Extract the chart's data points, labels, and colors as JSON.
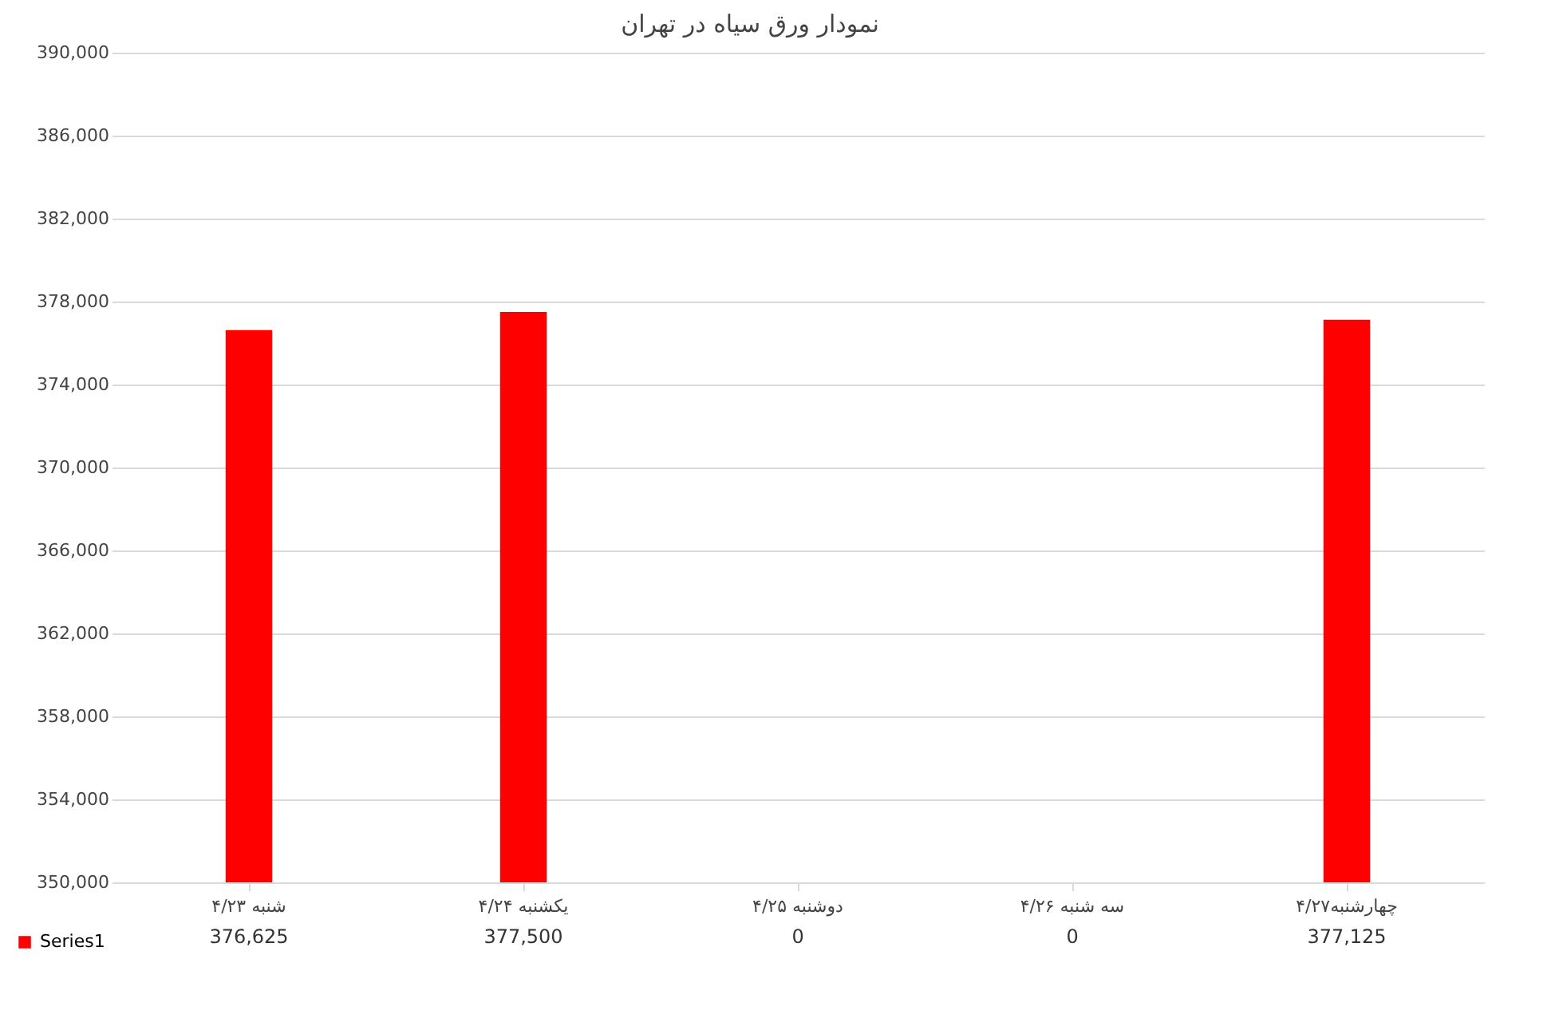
{
  "chart_data": {
    "type": "bar",
    "title": "نمودار ورق سیاه در تهران",
    "categories": [
      "شنبه ۴/۲۳",
      "یکشنبه ۴/۲۴",
      "دوشنبه ۴/۲۵",
      "سه شنبه ۴/۲۶",
      "چهارشنبه۴/۲۷"
    ],
    "series": [
      {
        "name": "Series1",
        "color": "#ff0000",
        "values": [
          376625,
          377500,
          null,
          null,
          377125
        ],
        "value_labels": [
          "376,625",
          "377,500",
          "0",
          "0",
          "377,125"
        ]
      }
    ],
    "ylim": [
      350000,
      390000
    ],
    "yticks": [
      {
        "value": 350000,
        "label": "350,000"
      },
      {
        "value": 354000,
        "label": "354,000"
      },
      {
        "value": 358000,
        "label": "358,000"
      },
      {
        "value": 362000,
        "label": "362,000"
      },
      {
        "value": 366000,
        "label": "366,000"
      },
      {
        "value": 370000,
        "label": "370,000"
      },
      {
        "value": 374000,
        "label": "374,000"
      },
      {
        "value": 378000,
        "label": "378,000"
      },
      {
        "value": 382000,
        "label": "382,000"
      },
      {
        "value": 386000,
        "label": "386,000"
      },
      {
        "value": 390000,
        "label": "390,000"
      }
    ],
    "grid": "y",
    "legend": "bottom left"
  }
}
